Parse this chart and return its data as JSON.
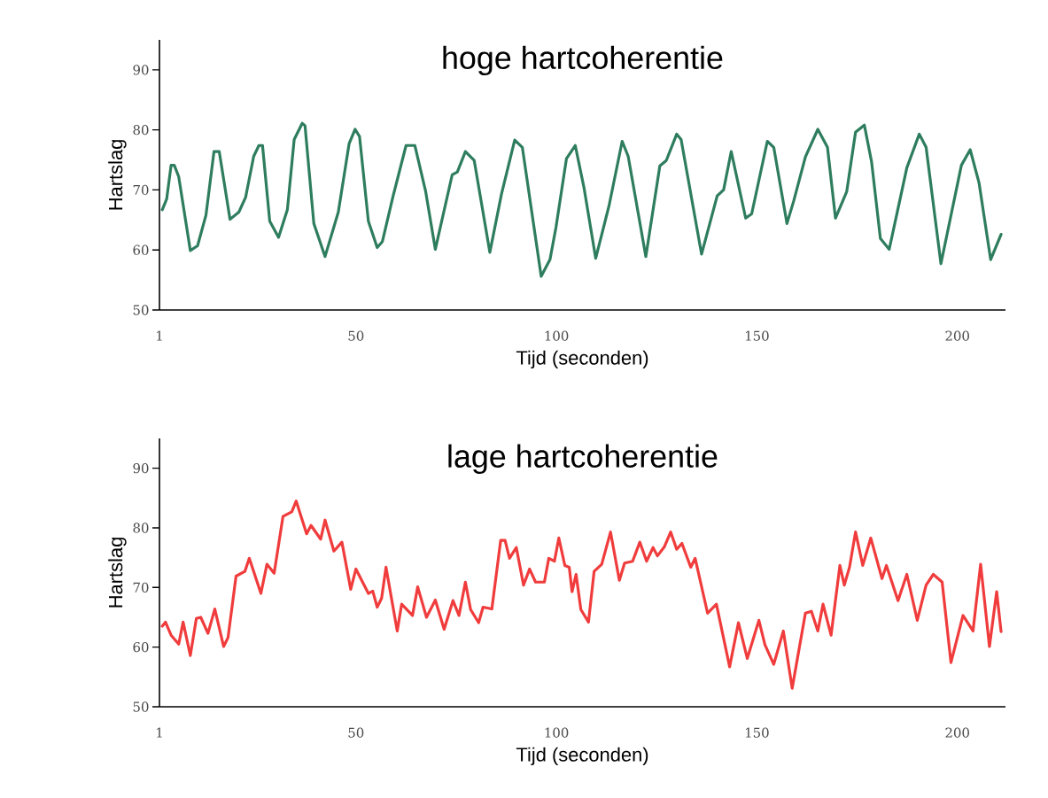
{
  "chart_data": [
    {
      "type": "line",
      "title": "hoge hartcoherentie",
      "xlabel": "Tijd (seconden)",
      "ylabel": "Hartslag",
      "color": "#2e7d5e",
      "xlim": [
        1,
        212
      ],
      "ylim": [
        50,
        95
      ],
      "xticks": [
        1,
        50,
        100,
        150,
        200
      ],
      "yticks": [
        50,
        60,
        70,
        80,
        90
      ],
      "x": [
        1.7,
        2.8,
        3.9,
        4.7,
        5.8,
        8.7,
        10.5,
        12.6,
        14.6,
        15.9,
        18.6,
        20.8,
        22.5,
        24.5,
        25.8,
        26.7,
        28.5,
        30.7,
        32.9,
        34.6,
        36.6,
        37.3,
        39.5,
        42.3,
        45.6,
        48.3,
        49.8,
        50.9,
        53.1,
        55.3,
        56.6,
        59.2,
        62.5,
        64.7,
        67.4,
        69.8,
        74.0,
        75.3,
        77.3,
        79.5,
        83.4,
        86.3,
        89.6,
        91.5,
        96.2,
        98.4,
        99.9,
        102.5,
        104.7,
        106.9,
        109.8,
        113.1,
        116.4,
        117.9,
        122.3,
        125.8,
        127.4,
        130.0,
        131.1,
        136.2,
        140.1,
        141.7,
        143.6,
        147.2,
        148.7,
        152.6,
        154.2,
        157.5,
        159.2,
        162.1,
        165.2,
        167.6,
        169.6,
        172.4,
        174.6,
        176.8,
        178.6,
        180.8,
        183.0,
        187.4,
        190.5,
        192.2,
        195.9,
        201.0,
        203.2,
        205.4,
        208.3,
        210.9
      ],
      "values": [
        66.7,
        68.5,
        74.1,
        74.1,
        72.2,
        59.9,
        60.7,
        65.8,
        76.4,
        76.4,
        65.1,
        66.3,
        68.8,
        75.6,
        77.4,
        77.4,
        64.8,
        62.1,
        66.7,
        78.4,
        81.1,
        80.7,
        64.4,
        58.9,
        66.3,
        77.7,
        80.1,
        78.9,
        64.8,
        60.4,
        61.4,
        68.8,
        77.4,
        77.4,
        69.7,
        60.1,
        72.5,
        73.0,
        76.4,
        74.9,
        59.6,
        69.3,
        78.3,
        77.1,
        55.6,
        58.4,
        63.8,
        75.2,
        77.4,
        70.3,
        58.6,
        67.3,
        78.1,
        75.6,
        58.9,
        74.0,
        74.9,
        79.3,
        78.4,
        59.3,
        69.0,
        70.0,
        76.4,
        65.3,
        66.0,
        78.1,
        77.1,
        64.4,
        68.2,
        75.5,
        80.1,
        77.1,
        65.3,
        69.7,
        79.6,
        80.8,
        74.7,
        61.9,
        60.1,
        73.7,
        79.3,
        77.1,
        57.7,
        74.1,
        76.7,
        71.2,
        58.4,
        62.6
      ]
    },
    {
      "type": "line",
      "title": "lage hartcoherentie",
      "xlabel": "Tijd (seconden)",
      "ylabel": "Hartslag",
      "color": "#f03c3c",
      "xlim": [
        1,
        212
      ],
      "ylim": [
        50,
        95
      ],
      "xticks": [
        1,
        50,
        100,
        150,
        200
      ],
      "yticks": [
        50,
        60,
        70,
        80,
        90
      ],
      "x": [
        1.7,
        2.5,
        3.9,
        5.8,
        6.9,
        8.7,
        10.2,
        11.3,
        13.1,
        14.8,
        17.0,
        18.1,
        20.1,
        22.3,
        23.4,
        26.3,
        27.8,
        29.6,
        31.8,
        34.0,
        35.1,
        37.7,
        38.8,
        41.2,
        42.3,
        44.5,
        46.5,
        48.7,
        50.0,
        53.1,
        54.2,
        55.3,
        56.4,
        57.5,
        60.3,
        61.4,
        64.1,
        65.4,
        67.6,
        69.8,
        72.0,
        74.2,
        75.7,
        77.3,
        78.6,
        80.6,
        81.7,
        83.9,
        86.1,
        87.2,
        88.3,
        90.0,
        91.8,
        93.3,
        94.8,
        97.0,
        98.1,
        99.5,
        100.6,
        102.1,
        103.2,
        103.9,
        104.9,
        106.1,
        108.0,
        109.4,
        111.3,
        113.5,
        115.7,
        117.0,
        119.0,
        120.8,
        122.5,
        124.1,
        125.2,
        126.9,
        128.5,
        130.0,
        131.3,
        133.5,
        134.6,
        137.7,
        139.9,
        143.2,
        145.4,
        147.6,
        150.5,
        152.0,
        154.2,
        156.6,
        158.8,
        162.1,
        163.6,
        165.2,
        166.5,
        168.5,
        170.7,
        171.8,
        173.1,
        174.6,
        176.4,
        178.4,
        181.2,
        182.3,
        185.2,
        187.4,
        190.0,
        192.2,
        194.0,
        196.2,
        198.4,
        201.4,
        203.9,
        205.8,
        208.0,
        209.8,
        210.9
      ],
      "values": [
        63.5,
        64.2,
        62.0,
        60.5,
        64.2,
        58.6,
        64.8,
        65.0,
        62.3,
        66.4,
        60.1,
        61.6,
        71.9,
        72.7,
        74.9,
        69.0,
        73.9,
        72.4,
        81.9,
        82.7,
        84.5,
        79.0,
        80.4,
        78.1,
        81.3,
        76.1,
        77.6,
        69.7,
        73.1,
        69.0,
        69.4,
        66.7,
        68.2,
        73.4,
        62.7,
        67.2,
        65.3,
        70.1,
        65.0,
        67.9,
        63.0,
        67.8,
        65.3,
        70.9,
        66.3,
        64.1,
        66.7,
        66.4,
        77.9,
        77.9,
        74.9,
        76.7,
        70.4,
        73.1,
        70.9,
        70.9,
        74.9,
        74.4,
        78.3,
        73.7,
        73.4,
        69.3,
        72.2,
        66.3,
        64.2,
        72.7,
        73.9,
        79.3,
        71.2,
        74.1,
        74.4,
        77.6,
        74.4,
        76.7,
        75.3,
        76.8,
        79.3,
        76.4,
        77.4,
        73.4,
        74.9,
        65.7,
        67.2,
        56.7,
        64.1,
        58.1,
        64.5,
        60.4,
        57.1,
        62.7,
        53.1,
        65.7,
        66.0,
        62.7,
        67.2,
        62.0,
        73.7,
        70.4,
        73.4,
        79.3,
        73.7,
        78.3,
        71.5,
        73.7,
        67.8,
        72.2,
        64.5,
        70.4,
        72.2,
        70.9,
        57.4,
        65.3,
        62.7,
        73.9,
        60.1,
        69.3,
        62.6
      ]
    }
  ]
}
